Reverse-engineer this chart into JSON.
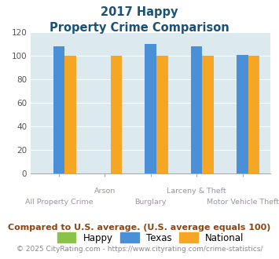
{
  "title_line1": "2017 Happy",
  "title_line2": "Property Crime Comparison",
  "categories": [
    "All Property Crime",
    "Arson",
    "Burglary",
    "Larceny & Theft",
    "Motor Vehicle Theft"
  ],
  "x_labels_row1": [
    "",
    "Arson",
    "",
    "Larceny & Theft",
    ""
  ],
  "x_labels_row2": [
    "All Property Crime",
    "",
    "Burglary",
    "",
    "Motor Vehicle Theft"
  ],
  "happy_values": [
    0,
    0,
    0,
    0,
    0
  ],
  "texas_values": [
    108,
    0,
    110,
    108,
    101
  ],
  "national_values": [
    100,
    100,
    100,
    100,
    100
  ],
  "ylim": [
    0,
    120
  ],
  "yticks": [
    0,
    20,
    40,
    60,
    80,
    100,
    120
  ],
  "color_happy": "#8bc34a",
  "color_texas": "#4a90d9",
  "color_national": "#f5a623",
  "bg_color": "#dce9ee",
  "title_color": "#1a5276",
  "xlabel_color": "#9e91a8",
  "legend_labels": [
    "Happy",
    "Texas",
    "National"
  ],
  "note_text": "Compared to U.S. average. (U.S. average equals 100)",
  "footer_text": "© 2025 CityRating.com - https://www.cityrating.com/crime-statistics/",
  "note_color": "#8b4513",
  "footer_color": "#888888",
  "note_fontsize": 8.0,
  "footer_fontsize": 6.5,
  "title_fontsize": 10.5,
  "bar_width": 0.25
}
